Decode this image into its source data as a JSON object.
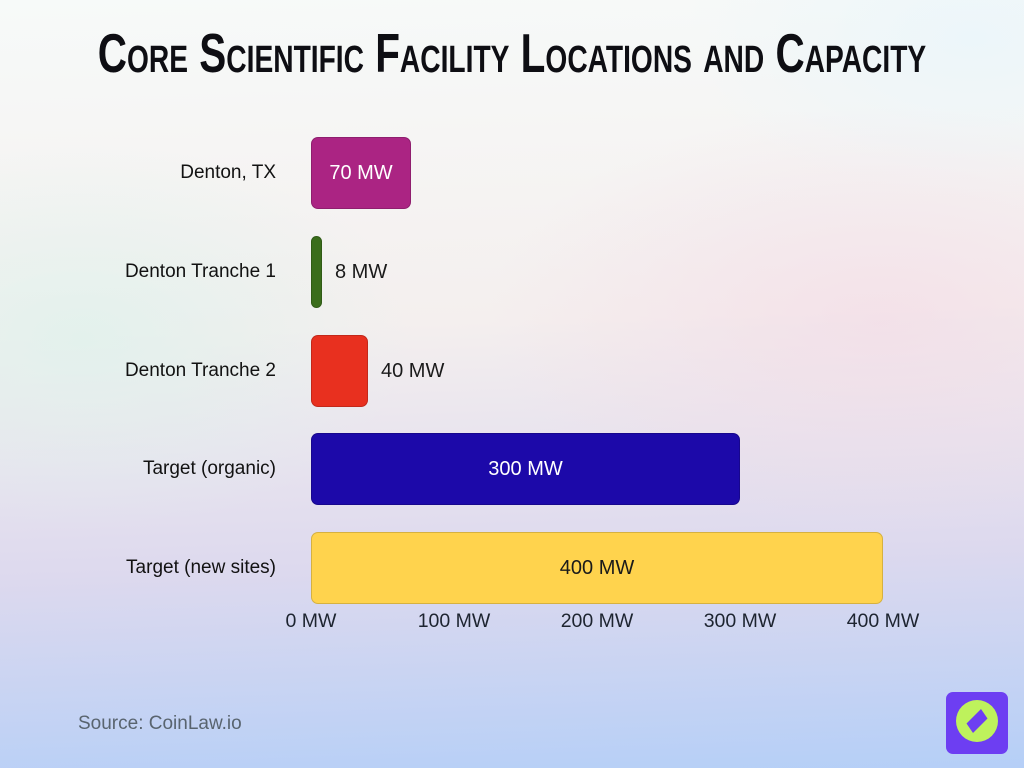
{
  "title": "Core Scientific Facility Locations and Capacity",
  "source": "Source: CoinLaw.io",
  "logo": {
    "icon": "compass-icon",
    "bg_color": "#6D3EF2",
    "circle_color": "#BEF25C",
    "needle_color": "#6D3EF2"
  },
  "chart_data": {
    "type": "bar",
    "orientation": "horizontal",
    "title": "Core Scientific Facility Locations and Capacity",
    "categories": [
      "Denton, TX",
      "Denton Tranche 1",
      "Denton Tranche 2",
      "Target (organic)",
      "Target (new sites)"
    ],
    "values": [
      70,
      8,
      40,
      300,
      400
    ],
    "value_labels": [
      "70 MW",
      "8 MW",
      "40 MW",
      "300 MW",
      "400 MW"
    ],
    "bar_colors": [
      "#AB2483",
      "#3A6D1B",
      "#E8301F",
      "#1C09A9",
      "#FFD34D"
    ],
    "value_label_placement": [
      "inside",
      "outside",
      "outside",
      "inside",
      "inside"
    ],
    "value_label_colors": [
      "#FFFFFF",
      "#1A1A1A",
      "#1A1A1A",
      "#FFFFFF",
      "#1A1A1A"
    ],
    "x_ticks": [
      0,
      100,
      200,
      300,
      400
    ],
    "x_tick_labels": [
      "0 MW",
      "100 MW",
      "200 MW",
      "300 MW",
      "400 MW"
    ],
    "xlim": [
      0,
      400
    ],
    "xlabel": "",
    "ylabel": "",
    "grid": false,
    "legend": false
  }
}
